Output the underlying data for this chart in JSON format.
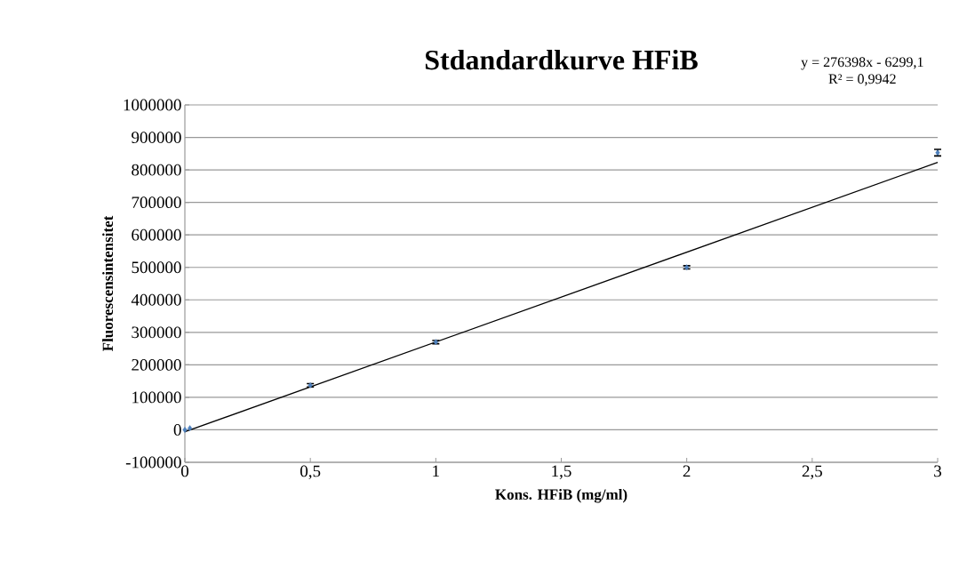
{
  "chart_data": {
    "type": "scatter",
    "title": "Stdandardkurve HFiB",
    "xlabel": "Kons. HFiB (mg/ml)",
    "ylabel": "Fluorescensintensitet",
    "annotations": [
      "y = 276398x - 6299,1",
      "R² = 0,9942"
    ],
    "xlim": [
      0,
      3
    ],
    "xticks": [
      0,
      {
        "value": 0.5,
        "label": "0,5"
      },
      1,
      {
        "value": 1.5,
        "label": "1,5"
      },
      2,
      {
        "value": 2.5,
        "label": "2,5"
      },
      3
    ],
    "ylim": [
      -100000,
      1000000
    ],
    "yticks": [
      -100000,
      0,
      100000,
      200000,
      300000,
      400000,
      500000,
      600000,
      700000,
      800000,
      900000,
      1000000
    ],
    "grid": "y",
    "marker": "diamond",
    "series": [
      {
        "color": "#4f81bd",
        "x": [
          0,
          0.02,
          0.5,
          1,
          2,
          3
        ],
        "values": [
          0,
          5000,
          137000,
          270000,
          500000,
          853000
        ],
        "errors": [
          null,
          null,
          5000,
          5000,
          5000,
          10000
        ]
      },
      {
        "type": "line",
        "marker": "none",
        "color": "#000000",
        "x": [
          0,
          3
        ],
        "values": [
          -6000,
          823000
        ]
      }
    ]
  }
}
